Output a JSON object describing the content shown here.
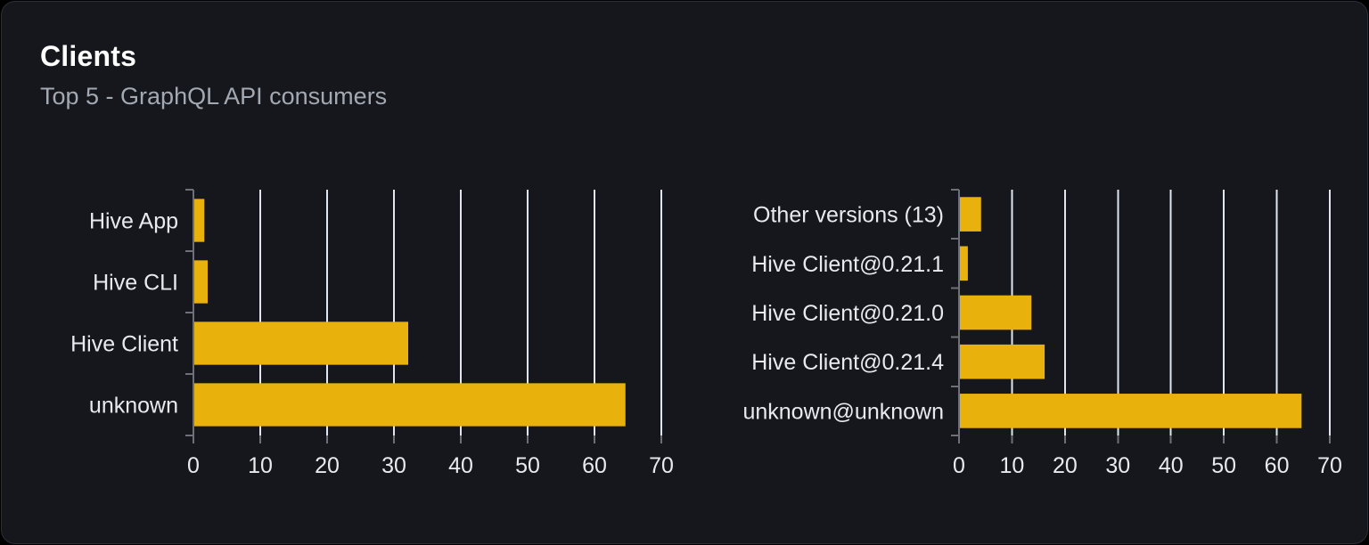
{
  "card": {
    "title": "Clients",
    "subtitle": "Top 5 - GraphQL API consumers"
  },
  "colors": {
    "bar": "#e9b10c",
    "grid_line": "#e0e6f1",
    "axis_line": "#6e7079",
    "axis_label": "#e8eaee",
    "title": "#ffffff",
    "subtitle": "#a3a9b3",
    "card_bg": "#15171c",
    "card_border": "#2a2e36",
    "page_bg": "#000000"
  },
  "chart_data": [
    {
      "type": "bar",
      "orientation": "horizontal",
      "title": "",
      "categories": [
        "Hive App",
        "Hive CLI",
        "Hive Client",
        "unknown"
      ],
      "values": [
        1.5,
        2,
        32,
        64.5
      ],
      "xlim": [
        0,
        70
      ],
      "xticks": [
        0,
        10,
        20,
        30,
        40,
        50,
        60,
        70
      ],
      "grid": true,
      "legend": false
    },
    {
      "type": "bar",
      "orientation": "horizontal",
      "title": "",
      "categories": [
        "Other versions (13)",
        "Hive Client@0.21.1",
        "Hive Client@0.21.0",
        "Hive Client@0.21.4",
        "unknown@unknown"
      ],
      "values": [
        4,
        1.5,
        13.5,
        16,
        64.5
      ],
      "xlim": [
        0,
        70
      ],
      "xticks": [
        0,
        10,
        20,
        30,
        40,
        50,
        60,
        70
      ],
      "grid": true,
      "legend": false
    }
  ]
}
